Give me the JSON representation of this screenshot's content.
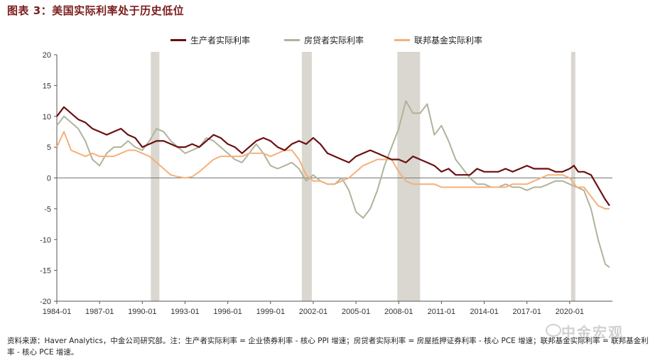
{
  "title": "图表 3：美国实际利率处于历史低位",
  "legend": [
    {
      "label": "生产者实际利率",
      "color": "#6b0f12"
    },
    {
      "label": "房贷者实际利率",
      "color": "#b0b39a"
    },
    {
      "label": "联邦基金实际利率",
      "color": "#f5b07a"
    }
  ],
  "note": "资料来源：Haver Analytics，中金公司研究部。注：生产者实际利率 = 企业债券利率 - 核心 PPI 增速；房贷者实际利率 = 房屋抵押证券利率 - 核心 PCE 增速；联邦基金实际利率 = 联邦基金利率 - 核心 PCE 增速。",
  "watermark": "中金宏观",
  "chart_data": {
    "type": "line",
    "ylim": [
      -20,
      20
    ],
    "y_ticks": [
      20,
      15,
      10,
      5,
      0,
      -5,
      -10,
      -15,
      -20
    ],
    "x_range": [
      1984.0,
      2023.0
    ],
    "x_tick_labels": [
      "1984-01",
      "1987-01",
      "1990-01",
      "1993-01",
      "1996-01",
      "1999-01",
      "2002-01",
      "2005-01",
      "2008-01",
      "2011-01",
      "2014-01",
      "2017-01",
      "2020-01"
    ],
    "x_tick_years": [
      1984,
      1987,
      1990,
      1993,
      1996,
      1999,
      2002,
      2005,
      2008,
      2011,
      2014,
      2017,
      2020
    ],
    "recessions": [
      [
        1990.6,
        1991.2
      ],
      [
        2001.2,
        2001.9
      ],
      [
        2007.9,
        2009.5
      ],
      [
        2020.1,
        2020.4
      ]
    ],
    "series": [
      {
        "name": "生产者实际利率",
        "color": "#6b0f12",
        "points": [
          [
            1984.0,
            10
          ],
          [
            1984.5,
            11.5
          ],
          [
            1985.0,
            10.5
          ],
          [
            1985.5,
            9.5
          ],
          [
            1986.0,
            9
          ],
          [
            1986.5,
            8
          ],
          [
            1987.0,
            7.5
          ],
          [
            1987.5,
            7
          ],
          [
            1988.0,
            7.5
          ],
          [
            1988.5,
            8
          ],
          [
            1989.0,
            7
          ],
          [
            1989.5,
            6.5
          ],
          [
            1990.0,
            5
          ],
          [
            1990.5,
            5.5
          ],
          [
            1991.0,
            6
          ],
          [
            1991.5,
            6
          ],
          [
            1992.0,
            5.5
          ],
          [
            1992.5,
            5
          ],
          [
            1993.0,
            5
          ],
          [
            1993.5,
            5.5
          ],
          [
            1994.0,
            5
          ],
          [
            1994.5,
            6
          ],
          [
            1995.0,
            7
          ],
          [
            1995.5,
            6.5
          ],
          [
            1996.0,
            5.5
          ],
          [
            1996.5,
            5
          ],
          [
            1997.0,
            4
          ],
          [
            1997.5,
            5
          ],
          [
            1998.0,
            6
          ],
          [
            1998.5,
            6.5
          ],
          [
            1999.0,
            6
          ],
          [
            1999.5,
            5
          ],
          [
            2000.0,
            4.5
          ],
          [
            2000.5,
            5.5
          ],
          [
            2001.0,
            6
          ],
          [
            2001.5,
            5.5
          ],
          [
            2002.0,
            6.5
          ],
          [
            2002.5,
            5.5
          ],
          [
            2003.0,
            4
          ],
          [
            2003.5,
            3.5
          ],
          [
            2004.0,
            3
          ],
          [
            2004.5,
            2.5
          ],
          [
            2005.0,
            3.5
          ],
          [
            2005.5,
            4
          ],
          [
            2006.0,
            4.5
          ],
          [
            2006.5,
            4
          ],
          [
            2007.0,
            3.5
          ],
          [
            2007.5,
            3
          ],
          [
            2008.0,
            3
          ],
          [
            2008.5,
            2.5
          ],
          [
            2009.0,
            3.5
          ],
          [
            2009.5,
            3
          ],
          [
            2010.0,
            2.5
          ],
          [
            2010.5,
            2
          ],
          [
            2011.0,
            1
          ],
          [
            2011.5,
            1.5
          ],
          [
            2012.0,
            0.5
          ],
          [
            2012.5,
            0.5
          ],
          [
            2013.0,
            0.5
          ],
          [
            2013.5,
            1.5
          ],
          [
            2014.0,
            1
          ],
          [
            2014.5,
            1
          ],
          [
            2015.0,
            1
          ],
          [
            2015.5,
            1.5
          ],
          [
            2016.0,
            1
          ],
          [
            2016.5,
            1.5
          ],
          [
            2017.0,
            2
          ],
          [
            2017.5,
            1.5
          ],
          [
            2018.0,
            1.5
          ],
          [
            2018.5,
            1.5
          ],
          [
            2019.0,
            1
          ],
          [
            2019.5,
            1
          ],
          [
            2020.0,
            1.5
          ],
          [
            2020.3,
            2
          ],
          [
            2020.6,
            1
          ],
          [
            2021.0,
            1
          ],
          [
            2021.5,
            0.5
          ],
          [
            2022.0,
            -1.5
          ],
          [
            2022.5,
            -3.5
          ],
          [
            2022.8,
            -4.5
          ]
        ]
      },
      {
        "name": "房贷者实际利率",
        "color": "#b0b39a",
        "points": [
          [
            1984.0,
            8.5
          ],
          [
            1984.5,
            10
          ],
          [
            1985.0,
            9
          ],
          [
            1985.5,
            8
          ],
          [
            1986.0,
            6
          ],
          [
            1986.5,
            3
          ],
          [
            1987.0,
            2
          ],
          [
            1987.5,
            4
          ],
          [
            1988.0,
            5
          ],
          [
            1988.5,
            5
          ],
          [
            1989.0,
            6
          ],
          [
            1989.5,
            5
          ],
          [
            1990.0,
            4.5
          ],
          [
            1990.5,
            6
          ],
          [
            1991.0,
            8
          ],
          [
            1991.5,
            7.5
          ],
          [
            1992.0,
            6
          ],
          [
            1992.5,
            5
          ],
          [
            1993.0,
            4
          ],
          [
            1993.5,
            4.5
          ],
          [
            1994.0,
            5
          ],
          [
            1994.5,
            6.5
          ],
          [
            1995.0,
            6
          ],
          [
            1995.5,
            5
          ],
          [
            1996.0,
            4
          ],
          [
            1996.5,
            3
          ],
          [
            1997.0,
            2.5
          ],
          [
            1997.5,
            4
          ],
          [
            1998.0,
            5.5
          ],
          [
            1998.5,
            4
          ],
          [
            1999.0,
            2
          ],
          [
            1999.5,
            1.5
          ],
          [
            2000.0,
            2
          ],
          [
            2000.5,
            2.5
          ],
          [
            2001.0,
            1.5
          ],
          [
            2001.5,
            -0.5
          ],
          [
            2002.0,
            0.5
          ],
          [
            2002.5,
            -0.5
          ],
          [
            2003.0,
            -1
          ],
          [
            2003.5,
            -1
          ],
          [
            2004.0,
            0
          ],
          [
            2004.5,
            -2
          ],
          [
            2005.0,
            -5.5
          ],
          [
            2005.5,
            -6.5
          ],
          [
            2006.0,
            -5
          ],
          [
            2006.5,
            -2
          ],
          [
            2007.0,
            2
          ],
          [
            2007.5,
            5
          ],
          [
            2008.0,
            8
          ],
          [
            2008.5,
            12.5
          ],
          [
            2009.0,
            10.5
          ],
          [
            2009.5,
            10.5
          ],
          [
            2010.0,
            12
          ],
          [
            2010.5,
            7
          ],
          [
            2011.0,
            8.5
          ],
          [
            2011.5,
            6
          ],
          [
            2012.0,
            3
          ],
          [
            2012.5,
            1.5
          ],
          [
            2013.0,
            0
          ],
          [
            2013.5,
            -1
          ],
          [
            2014.0,
            -1
          ],
          [
            2014.5,
            -1.5
          ],
          [
            2015.0,
            -1.5
          ],
          [
            2015.5,
            -1
          ],
          [
            2016.0,
            -1.5
          ],
          [
            2016.5,
            -1.5
          ],
          [
            2017.0,
            -2
          ],
          [
            2017.5,
            -1.5
          ],
          [
            2018.0,
            -1.5
          ],
          [
            2018.5,
            -1
          ],
          [
            2019.0,
            -0.5
          ],
          [
            2019.5,
            -0.5
          ],
          [
            2020.0,
            -1
          ],
          [
            2020.5,
            -1.5
          ],
          [
            2021.0,
            -2
          ],
          [
            2021.5,
            -5
          ],
          [
            2022.0,
            -10
          ],
          [
            2022.5,
            -14
          ],
          [
            2022.8,
            -14.5
          ]
        ]
      },
      {
        "name": "联邦基金实际利率",
        "color": "#f5b07a",
        "points": [
          [
            1984.0,
            5
          ],
          [
            1984.5,
            7.5
          ],
          [
            1985.0,
            4.5
          ],
          [
            1985.5,
            4
          ],
          [
            1986.0,
            3.5
          ],
          [
            1986.5,
            4
          ],
          [
            1987.0,
            3.5
          ],
          [
            1987.5,
            3.5
          ],
          [
            1988.0,
            3.5
          ],
          [
            1988.5,
            4
          ],
          [
            1989.0,
            4.5
          ],
          [
            1989.5,
            4.5
          ],
          [
            1990.0,
            4
          ],
          [
            1990.5,
            3.5
          ],
          [
            1991.0,
            2.5
          ],
          [
            1991.5,
            1.5
          ],
          [
            1992.0,
            0.5
          ],
          [
            1992.5,
            0.2
          ],
          [
            1993.0,
            0
          ],
          [
            1993.5,
            0.2
          ],
          [
            1994.0,
            1
          ],
          [
            1994.5,
            2
          ],
          [
            1995.0,
            3
          ],
          [
            1995.5,
            3.5
          ],
          [
            1996.0,
            3.5
          ],
          [
            1996.5,
            3.5
          ],
          [
            1997.0,
            3.5
          ],
          [
            1997.5,
            4
          ],
          [
            1998.0,
            4
          ],
          [
            1998.5,
            4
          ],
          [
            1999.0,
            3.5
          ],
          [
            1999.5,
            4
          ],
          [
            2000.0,
            4.5
          ],
          [
            2000.5,
            4.5
          ],
          [
            2001.0,
            3
          ],
          [
            2001.5,
            0.5
          ],
          [
            2002.0,
            -0.5
          ],
          [
            2002.5,
            -0.5
          ],
          [
            2003.0,
            -1
          ],
          [
            2003.5,
            -1
          ],
          [
            2004.0,
            -0.5
          ],
          [
            2004.5,
            0
          ],
          [
            2005.0,
            1
          ],
          [
            2005.5,
            2
          ],
          [
            2006.0,
            2.5
          ],
          [
            2006.5,
            3
          ],
          [
            2007.0,
            3
          ],
          [
            2007.5,
            3
          ],
          [
            2008.0,
            1
          ],
          [
            2008.5,
            -0.5
          ],
          [
            2009.0,
            -1
          ],
          [
            2009.5,
            -1
          ],
          [
            2010.0,
            -1
          ],
          [
            2010.5,
            -1
          ],
          [
            2011.0,
            -1.5
          ],
          [
            2011.5,
            -1.5
          ],
          [
            2012.0,
            -1.5
          ],
          [
            2012.5,
            -1.5
          ],
          [
            2013.0,
            -1.5
          ],
          [
            2013.5,
            -1.5
          ],
          [
            2014.0,
            -1.5
          ],
          [
            2014.5,
            -1.5
          ],
          [
            2015.0,
            -1.5
          ],
          [
            2015.5,
            -1.5
          ],
          [
            2016.0,
            -1
          ],
          [
            2016.5,
            -1
          ],
          [
            2017.0,
            -1
          ],
          [
            2017.5,
            -0.5
          ],
          [
            2018.0,
            0
          ],
          [
            2018.5,
            0.5
          ],
          [
            2019.0,
            0.5
          ],
          [
            2019.5,
            0.5
          ],
          [
            2020.0,
            0
          ],
          [
            2020.5,
            -1.5
          ],
          [
            2021.0,
            -1.5
          ],
          [
            2021.5,
            -3
          ],
          [
            2022.0,
            -4.5
          ],
          [
            2022.5,
            -5
          ],
          [
            2022.8,
            -5
          ]
        ]
      }
    ]
  }
}
